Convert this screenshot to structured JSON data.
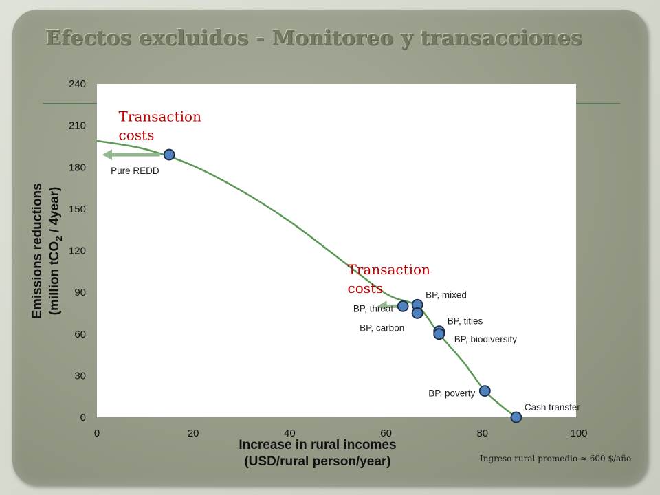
{
  "slide": {
    "title": "Efectos excluidos - Monitoreo y transacciones",
    "footnote": "Ingreso rural promedio ≈ 600 $/año"
  },
  "colors": {
    "curve": "#5a9a55",
    "point_fill": "#4f81bd",
    "point_stroke": "#1f2a44",
    "annotation_red": "#c00000",
    "arrow": "#93b78e",
    "plot_bg": "#ffffff"
  },
  "chart_data": {
    "type": "scatter",
    "xlabel": "Increase in rural incomes",
    "xlabel_line2": "(USD/rural person/year)",
    "ylabel_line1": "Emissions reductions",
    "ylabel_line2_pre": "(million tCO",
    "ylabel_line2_sub": "2",
    "ylabel_line2_post": " / 4year)",
    "xlim": [
      0,
      100
    ],
    "ylim": [
      0,
      240
    ],
    "xticks": [
      0,
      20,
      40,
      60,
      80,
      100
    ],
    "yticks": [
      0,
      30,
      60,
      90,
      120,
      150,
      180,
      210,
      240
    ],
    "grid": false,
    "points": [
      {
        "label": "Pure REDD",
        "x": 15,
        "y": 189,
        "label_pos": "below"
      },
      {
        "label": "BP, mixed",
        "x": 66.5,
        "y": 81,
        "label_pos": "right-up"
      },
      {
        "label": "BP, threat",
        "x": 63.5,
        "y": 80,
        "label_pos": "left"
      },
      {
        "label": "BP, carbon",
        "x": 66.5,
        "y": 75,
        "label_pos": "below-left"
      },
      {
        "label": "BP, titles",
        "x": 71,
        "y": 62,
        "label_pos": "right-up"
      },
      {
        "label": "BP, biodiversity",
        "x": 71,
        "y": 60,
        "label_pos": "right-down"
      },
      {
        "label": "BP, poverty",
        "x": 80.5,
        "y": 19,
        "label_pos": "left"
      },
      {
        "label": "Cash transfer",
        "x": 87,
        "y": 0,
        "label_pos": "right-up"
      }
    ],
    "curve": {
      "x": [
        0,
        10,
        20,
        30,
        40,
        50,
        60,
        66.5,
        71,
        76,
        80.5,
        84,
        87
      ],
      "y": [
        199,
        193,
        181,
        163,
        141,
        115,
        89,
        80,
        60,
        40,
        19,
        8,
        0
      ]
    },
    "annotations": [
      {
        "text_line1": "Transaction",
        "text_line2": "costs",
        "x": 4.5,
        "y": 213
      },
      {
        "text_line1": "Transaction",
        "text_line2": "costs",
        "x": 52,
        "y": 103
      }
    ],
    "arrows": [
      {
        "from_x": 14.5,
        "from_y": 189,
        "to_x": 0,
        "to_y": 189
      },
      {
        "from_x": 65.5,
        "from_y": 80,
        "to_x": 57,
        "to_y": 80
      }
    ]
  }
}
